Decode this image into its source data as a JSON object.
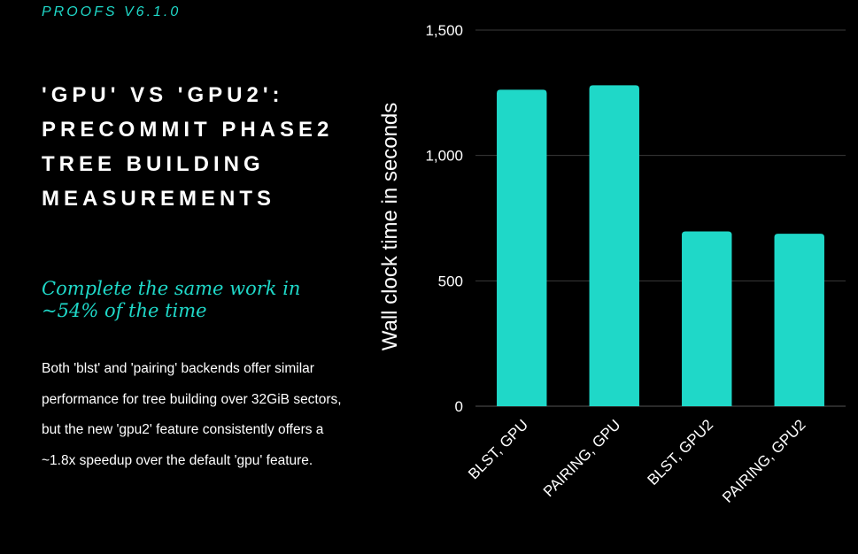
{
  "header": {
    "kicker": "PROOFS V6.1.0",
    "title": "'GPU' VS 'GPU2': PRECOMMIT PHASE2 TREE BUILDING MEASUREMENTS",
    "subtitle": "Complete the same work in ~54% of the time",
    "body": "Both 'blst' and 'pairing' backends offer similar performance for tree building over 32GiB sectors, but the new 'gpu2' feature consistently offers a ~1.8x speedup over the default 'gpu' feature."
  },
  "colors": {
    "accent": "#1fd8c8",
    "bar": "#1fd8c8",
    "background": "#000000",
    "gridline": "#3a3a3a"
  },
  "chart_data": {
    "type": "bar",
    "categories": [
      "BLST, GPU",
      "PAIRING, GPU",
      "BLST, GPU2",
      "PAIRING, GPU2"
    ],
    "values": [
      1262,
      1280,
      697,
      688
    ],
    "title": "",
    "xlabel": "",
    "ylabel": "Wall clock time in seconds",
    "ylim": [
      0,
      1500
    ],
    "yticks": [
      0,
      500,
      1000,
      1500
    ],
    "ytick_labels": [
      "0",
      "500",
      "1,000",
      "1,500"
    ],
    "grid": true,
    "legend": "none"
  }
}
